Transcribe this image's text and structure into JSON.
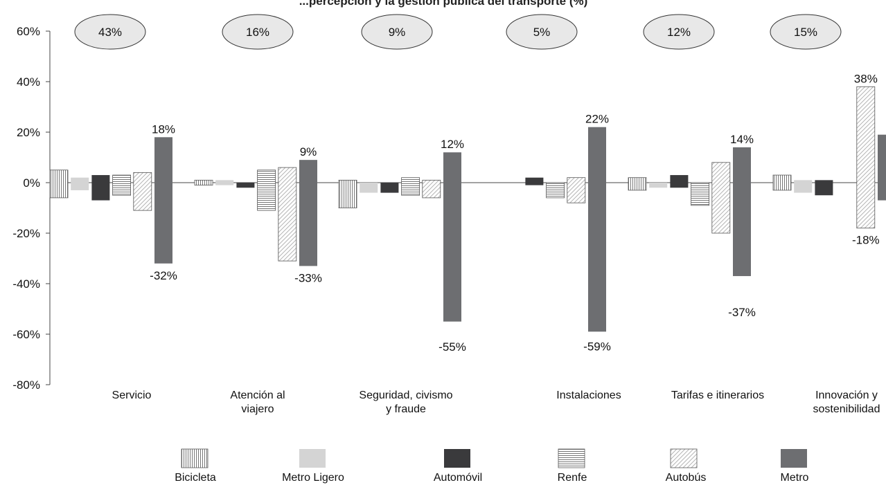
{
  "chart_data": {
    "type": "bar",
    "title": "...percepción y la gestión pública del transporte (%)",
    "ylim": [
      -80,
      60
    ],
    "yticks": [
      "60%",
      "40%",
      "20%",
      "0%",
      "-20%",
      "-40%",
      "-60%",
      "-80%"
    ],
    "categories": [
      [
        "Servicio"
      ],
      [
        "Atención al",
        "viajero"
      ],
      [
        "Seguridad, civismo",
        "y fraude"
      ],
      [
        "Instalaciones"
      ],
      [
        "Tarifas e itinerarios"
      ],
      [
        "Innovación y",
        "sostenibilidad"
      ]
    ],
    "weights": [
      "43%",
      "16%",
      "9%",
      "5%",
      "12%",
      "15%"
    ],
    "series": [
      {
        "name": "Bicicleta",
        "pattern": "vlines",
        "positive": [
          5,
          1,
          1,
          0,
          2,
          3
        ],
        "negative": [
          -6,
          -1,
          -10,
          0,
          -3,
          -3
        ]
      },
      {
        "name": "Metro Ligero",
        "pattern": "lightgray",
        "positive": [
          2,
          1,
          0,
          0,
          0,
          1
        ],
        "negative": [
          -3,
          -1,
          -4,
          0,
          -2,
          -4
        ]
      },
      {
        "name": "Automóvil",
        "pattern": "black",
        "positive": [
          3,
          0,
          0,
          2,
          3,
          1
        ],
        "negative": [
          -7,
          -2,
          -4,
          -1,
          -2,
          -5
        ]
      },
      {
        "name": "Renfe",
        "pattern": "hlines",
        "positive": [
          3,
          5,
          2,
          0,
          0,
          0
        ],
        "negative": [
          -5,
          -11,
          -5,
          -6,
          -9,
          0
        ]
      },
      {
        "name": "Autobús",
        "pattern": "diag",
        "positive": [
          4,
          6,
          1,
          2,
          8,
          38
        ],
        "negative": [
          -11,
          -31,
          -6,
          -8,
          -20,
          -18
        ]
      },
      {
        "name": "Metro",
        "pattern": "darkgray",
        "positive": [
          18,
          9,
          12,
          22,
          14,
          19
        ],
        "negative": [
          -32,
          -33,
          -55,
          -59,
          -37,
          -7
        ]
      }
    ],
    "data_labels": [
      {
        "series": 5,
        "category": 0,
        "value": 18,
        "text": "18%"
      },
      {
        "series": 5,
        "category": 0,
        "value": -32,
        "text": "-32%"
      },
      {
        "series": 5,
        "category": 1,
        "value": 9,
        "text": "9%"
      },
      {
        "series": 5,
        "category": 1,
        "value": -33,
        "text": "-33%"
      },
      {
        "series": 5,
        "category": 2,
        "value": 12,
        "text": "12%"
      },
      {
        "series": 5,
        "category": 2,
        "value": -55,
        "text": "-55%"
      },
      {
        "series": 5,
        "category": 3,
        "value": 22,
        "text": "22%"
      },
      {
        "series": 5,
        "category": 3,
        "value": -59,
        "text": "-59%"
      },
      {
        "series": 5,
        "category": 4,
        "value": 14,
        "text": "14%"
      },
      {
        "series": 5,
        "category": 4,
        "value": -37,
        "text": "-37%"
      },
      {
        "series": 4,
        "category": 5,
        "value": 38,
        "text": "38%"
      },
      {
        "series": 4,
        "category": 5,
        "value": -18,
        "text": "-18%"
      }
    ],
    "legend": [
      "Bicicleta",
      "Metro Ligero",
      "Automóvil",
      "Renfe",
      "Autobús",
      "Metro"
    ],
    "legend_position": "bottom",
    "grid": false,
    "colors": {
      "metro": "#6d6e71",
      "automovil": "#3a3a3c",
      "metro_ligero": "#d4d4d4",
      "axis": "#444444"
    }
  }
}
